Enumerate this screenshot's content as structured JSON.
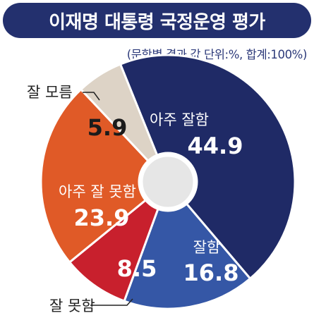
{
  "title": "이재명 대통령 국정운영 평가",
  "subtitle": "(문항별 결과 값 단위:%, 합계:100%)",
  "colors": {
    "title_bg": "#23306e",
    "very_good": "#1f2a66",
    "good": "#3557a6",
    "bad": "#c8202d",
    "very_bad": "#e05a27",
    "unknown": "#ddd3c6"
  },
  "chart_data": {
    "type": "pie",
    "title": "이재명 대통령 국정운영 평가",
    "unit": "%",
    "donut": true,
    "slices": [
      {
        "label": "아주 잘함",
        "value": 44.9,
        "value_text": "44.9",
        "color": "#1f2a66"
      },
      {
        "label": "잘함",
        "value": 16.8,
        "value_text": "16.8",
        "color": "#3557a6"
      },
      {
        "label": "잘 못함",
        "value": 8.5,
        "value_text": "8.5",
        "color": "#c8202d"
      },
      {
        "label": "아주 잘 못함",
        "value": 23.9,
        "value_text": "23.9",
        "color": "#e05a27"
      },
      {
        "label": "잘 모름",
        "value": 5.9,
        "value_text": "5.9",
        "color": "#ddd3c6"
      }
    ]
  }
}
